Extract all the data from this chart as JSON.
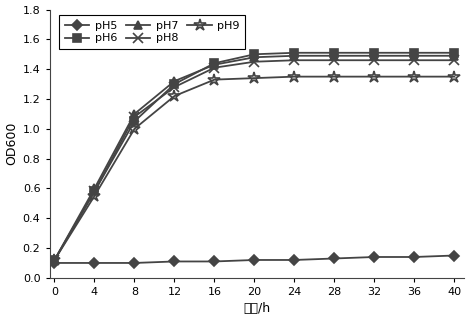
{
  "x": [
    0,
    4,
    8,
    12,
    16,
    20,
    24,
    28,
    32,
    36,
    40
  ],
  "series": {
    "pH5": [
      0.1,
      0.1,
      0.1,
      0.11,
      0.11,
      0.12,
      0.12,
      0.13,
      0.14,
      0.14,
      0.15
    ],
    "pH6": [
      0.12,
      0.58,
      1.05,
      1.3,
      1.44,
      1.5,
      1.51,
      1.51,
      1.51,
      1.51,
      1.51
    ],
    "pH7": [
      0.12,
      0.6,
      1.1,
      1.32,
      1.43,
      1.48,
      1.49,
      1.49,
      1.49,
      1.49,
      1.49
    ],
    "pH8": [
      0.12,
      0.58,
      1.08,
      1.28,
      1.41,
      1.45,
      1.46,
      1.46,
      1.46,
      1.46,
      1.46
    ],
    "pH9": [
      0.12,
      0.55,
      1.0,
      1.22,
      1.33,
      1.34,
      1.35,
      1.35,
      1.35,
      1.35,
      1.35
    ]
  },
  "color": "#444444",
  "markers": {
    "pH5": "D",
    "pH6": "s",
    "pH7": "^",
    "pH8": "x",
    "pH9": "*"
  },
  "markersizes": {
    "pH5": 5,
    "pH6": 6,
    "pH7": 6,
    "pH8": 7,
    "pH9": 9
  },
  "markerfill": {
    "pH5": true,
    "pH6": true,
    "pH7": true,
    "pH8": false,
    "pH9": false
  },
  "ylabel": "OD600",
  "xlabel": "时间/h",
  "ylim": [
    0,
    1.8
  ],
  "yticks": [
    0,
    0.2,
    0.4,
    0.6,
    0.8,
    1.0,
    1.2,
    1.4,
    1.6,
    1.8
  ],
  "xticks": [
    0,
    4,
    8,
    12,
    16,
    20,
    24,
    28,
    32,
    36,
    40
  ],
  "linewidth": 1.3,
  "background_color": "#ffffff",
  "legend_labels": [
    "pH5",
    "pH6",
    "pH7",
    "pH8",
    "pH9"
  ],
  "legend_ncol": 3
}
